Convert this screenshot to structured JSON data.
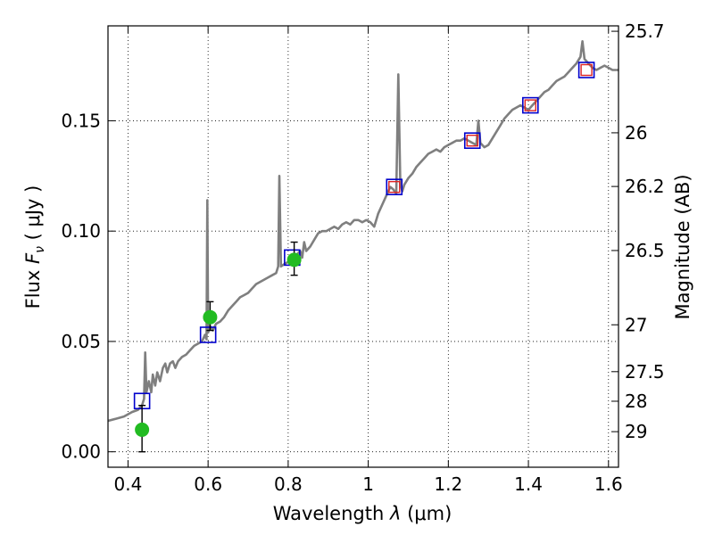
{
  "chart_data": {
    "type": "scatter",
    "xlabel_prefix": "Wavelength  ",
    "xlabel_lambda": "λ",
    "xlabel_unit": "(μm)",
    "ylabel_prefix": "Flux  ",
    "ylabel_symbol": "F",
    "ylabel_sub": "ν",
    "ylabel_unit": " (  μJy )",
    "y2label": "Magnitude (AB)",
    "xlim": [
      0.35,
      1.625
    ],
    "ylim": [
      -0.007,
      0.193
    ],
    "grid": true,
    "x_ticks": [
      {
        "value": 0.4,
        "label": "0.4"
      },
      {
        "value": 0.6,
        "label": "0.6"
      },
      {
        "value": 0.8,
        "label": "0.8"
      },
      {
        "value": 1.0,
        "label": "1"
      },
      {
        "value": 1.2,
        "label": "1.2"
      },
      {
        "value": 1.4,
        "label": "1.4"
      },
      {
        "value": 1.6,
        "label": "1.6"
      }
    ],
    "y_ticks": [
      {
        "value": 0.0,
        "label": "0.00"
      },
      {
        "value": 0.05,
        "label": "0.05"
      },
      {
        "value": 0.1,
        "label": "0.10"
      },
      {
        "value": 0.15,
        "label": "0.15"
      }
    ],
    "y2_ticks": [
      {
        "value": 25.7,
        "label": "25.7"
      },
      {
        "value": 26.0,
        "label": "26"
      },
      {
        "value": 26.2,
        "label": "26.2"
      },
      {
        "value": 26.5,
        "label": "26.5"
      },
      {
        "value": 27.0,
        "label": "27"
      },
      {
        "value": 27.5,
        "label": "27.5"
      },
      {
        "value": 28.0,
        "label": "28"
      },
      {
        "value": 29.0,
        "label": "29"
      }
    ],
    "model_spectrum": {
      "color": "#7f7f7f",
      "points": [
        [
          0.35,
          0.014
        ],
        [
          0.37,
          0.015
        ],
        [
          0.39,
          0.016
        ],
        [
          0.41,
          0.018
        ],
        [
          0.425,
          0.019
        ],
        [
          0.435,
          0.021
        ],
        [
          0.44,
          0.024
        ],
        [
          0.443,
          0.045
        ],
        [
          0.446,
          0.027
        ],
        [
          0.452,
          0.032
        ],
        [
          0.458,
          0.027
        ],
        [
          0.462,
          0.035
        ],
        [
          0.468,
          0.03
        ],
        [
          0.473,
          0.036
        ],
        [
          0.48,
          0.032
        ],
        [
          0.487,
          0.038
        ],
        [
          0.493,
          0.04
        ],
        [
          0.498,
          0.036
        ],
        [
          0.505,
          0.04
        ],
        [
          0.512,
          0.041
        ],
        [
          0.518,
          0.038
        ],
        [
          0.525,
          0.041
        ],
        [
          0.535,
          0.043
        ],
        [
          0.545,
          0.044
        ],
        [
          0.555,
          0.046
        ],
        [
          0.565,
          0.048
        ],
        [
          0.575,
          0.049
        ],
        [
          0.585,
          0.05
        ],
        [
          0.592,
          0.053
        ],
        [
          0.596,
          0.051
        ],
        [
          0.598,
          0.114
        ],
        [
          0.6,
          0.054
        ],
        [
          0.605,
          0.057
        ],
        [
          0.612,
          0.055
        ],
        [
          0.62,
          0.058
        ],
        [
          0.63,
          0.059
        ],
        [
          0.64,
          0.061
        ],
        [
          0.65,
          0.064
        ],
        [
          0.66,
          0.066
        ],
        [
          0.67,
          0.068
        ],
        [
          0.68,
          0.07
        ],
        [
          0.69,
          0.071
        ],
        [
          0.7,
          0.072
        ],
        [
          0.71,
          0.074
        ],
        [
          0.72,
          0.076
        ],
        [
          0.73,
          0.077
        ],
        [
          0.74,
          0.078
        ],
        [
          0.75,
          0.079
        ],
        [
          0.76,
          0.08
        ],
        [
          0.77,
          0.081
        ],
        [
          0.775,
          0.084
        ],
        [
          0.778,
          0.125
        ],
        [
          0.782,
          0.084
        ],
        [
          0.79,
          0.085
        ],
        [
          0.8,
          0.086
        ],
        [
          0.81,
          0.088
        ],
        [
          0.82,
          0.089
        ],
        [
          0.83,
          0.091
        ],
        [
          0.835,
          0.088
        ],
        [
          0.84,
          0.095
        ],
        [
          0.845,
          0.091
        ],
        [
          0.855,
          0.093
        ],
        [
          0.865,
          0.096
        ],
        [
          0.875,
          0.099
        ],
        [
          0.885,
          0.1
        ],
        [
          0.895,
          0.1
        ],
        [
          0.905,
          0.101
        ],
        [
          0.915,
          0.102
        ],
        [
          0.925,
          0.101
        ],
        [
          0.935,
          0.103
        ],
        [
          0.945,
          0.104
        ],
        [
          0.955,
          0.103
        ],
        [
          0.965,
          0.105
        ],
        [
          0.975,
          0.105
        ],
        [
          0.985,
          0.104
        ],
        [
          0.995,
          0.105
        ],
        [
          1.005,
          0.104
        ],
        [
          1.015,
          0.102
        ],
        [
          1.025,
          0.108
        ],
        [
          1.035,
          0.112
        ],
        [
          1.045,
          0.116
        ],
        [
          1.055,
          0.12
        ],
        [
          1.062,
          0.119
        ],
        [
          1.07,
          0.117
        ],
        [
          1.075,
          0.171
        ],
        [
          1.08,
          0.122
        ],
        [
          1.085,
          0.118
        ],
        [
          1.09,
          0.121
        ],
        [
          1.1,
          0.124
        ],
        [
          1.11,
          0.126
        ],
        [
          1.12,
          0.129
        ],
        [
          1.13,
          0.131
        ],
        [
          1.14,
          0.133
        ],
        [
          1.15,
          0.135
        ],
        [
          1.16,
          0.136
        ],
        [
          1.17,
          0.137
        ],
        [
          1.18,
          0.136
        ],
        [
          1.19,
          0.138
        ],
        [
          1.2,
          0.139
        ],
        [
          1.21,
          0.14
        ],
        [
          1.22,
          0.141
        ],
        [
          1.23,
          0.141
        ],
        [
          1.24,
          0.142
        ],
        [
          1.25,
          0.141
        ],
        [
          1.26,
          0.14
        ],
        [
          1.27,
          0.139
        ],
        [
          1.275,
          0.15
        ],
        [
          1.28,
          0.14
        ],
        [
          1.29,
          0.138
        ],
        [
          1.3,
          0.139
        ],
        [
          1.31,
          0.142
        ],
        [
          1.32,
          0.145
        ],
        [
          1.33,
          0.148
        ],
        [
          1.34,
          0.151
        ],
        [
          1.35,
          0.153
        ],
        [
          1.36,
          0.155
        ],
        [
          1.37,
          0.156
        ],
        [
          1.38,
          0.157
        ],
        [
          1.39,
          0.156
        ],
        [
          1.4,
          0.155
        ],
        [
          1.41,
          0.157
        ],
        [
          1.42,
          0.159
        ],
        [
          1.43,
          0.161
        ],
        [
          1.44,
          0.163
        ],
        [
          1.45,
          0.164
        ],
        [
          1.46,
          0.166
        ],
        [
          1.47,
          0.168
        ],
        [
          1.48,
          0.169
        ],
        [
          1.49,
          0.17
        ],
        [
          1.5,
          0.172
        ],
        [
          1.51,
          0.174
        ],
        [
          1.52,
          0.176
        ],
        [
          1.53,
          0.179
        ],
        [
          1.535,
          0.186
        ],
        [
          1.54,
          0.178
        ],
        [
          1.55,
          0.176
        ],
        [
          1.56,
          0.174
        ],
        [
          1.57,
          0.173
        ],
        [
          1.58,
          0.174
        ],
        [
          1.59,
          0.175
        ],
        [
          1.6,
          0.174
        ],
        [
          1.61,
          0.173
        ],
        [
          1.625,
          0.173
        ]
      ]
    },
    "model_photometry": {
      "color": "#0000cc",
      "points": [
        [
          0.435,
          0.023
        ],
        [
          0.6,
          0.053
        ],
        [
          0.81,
          0.088
        ],
        [
          1.065,
          0.12
        ],
        [
          1.26,
          0.141
        ],
        [
          1.405,
          0.157
        ],
        [
          1.545,
          0.173
        ]
      ]
    },
    "nir_photometry": {
      "color": "#dd2222",
      "points": [
        [
          1.065,
          0.12
        ],
        [
          1.26,
          0.141
        ],
        [
          1.405,
          0.157
        ],
        [
          1.545,
          0.173
        ]
      ]
    },
    "optical_photometry": {
      "color": "#22bb22",
      "points": [
        {
          "x": 0.435,
          "y": 0.01,
          "err": [
            0.0,
            0.021
          ]
        },
        {
          "x": 0.605,
          "y": 0.061,
          "err": [
            0.055,
            0.068
          ]
        },
        {
          "x": 0.815,
          "y": 0.087,
          "err": [
            0.08,
            0.095
          ]
        }
      ]
    }
  }
}
